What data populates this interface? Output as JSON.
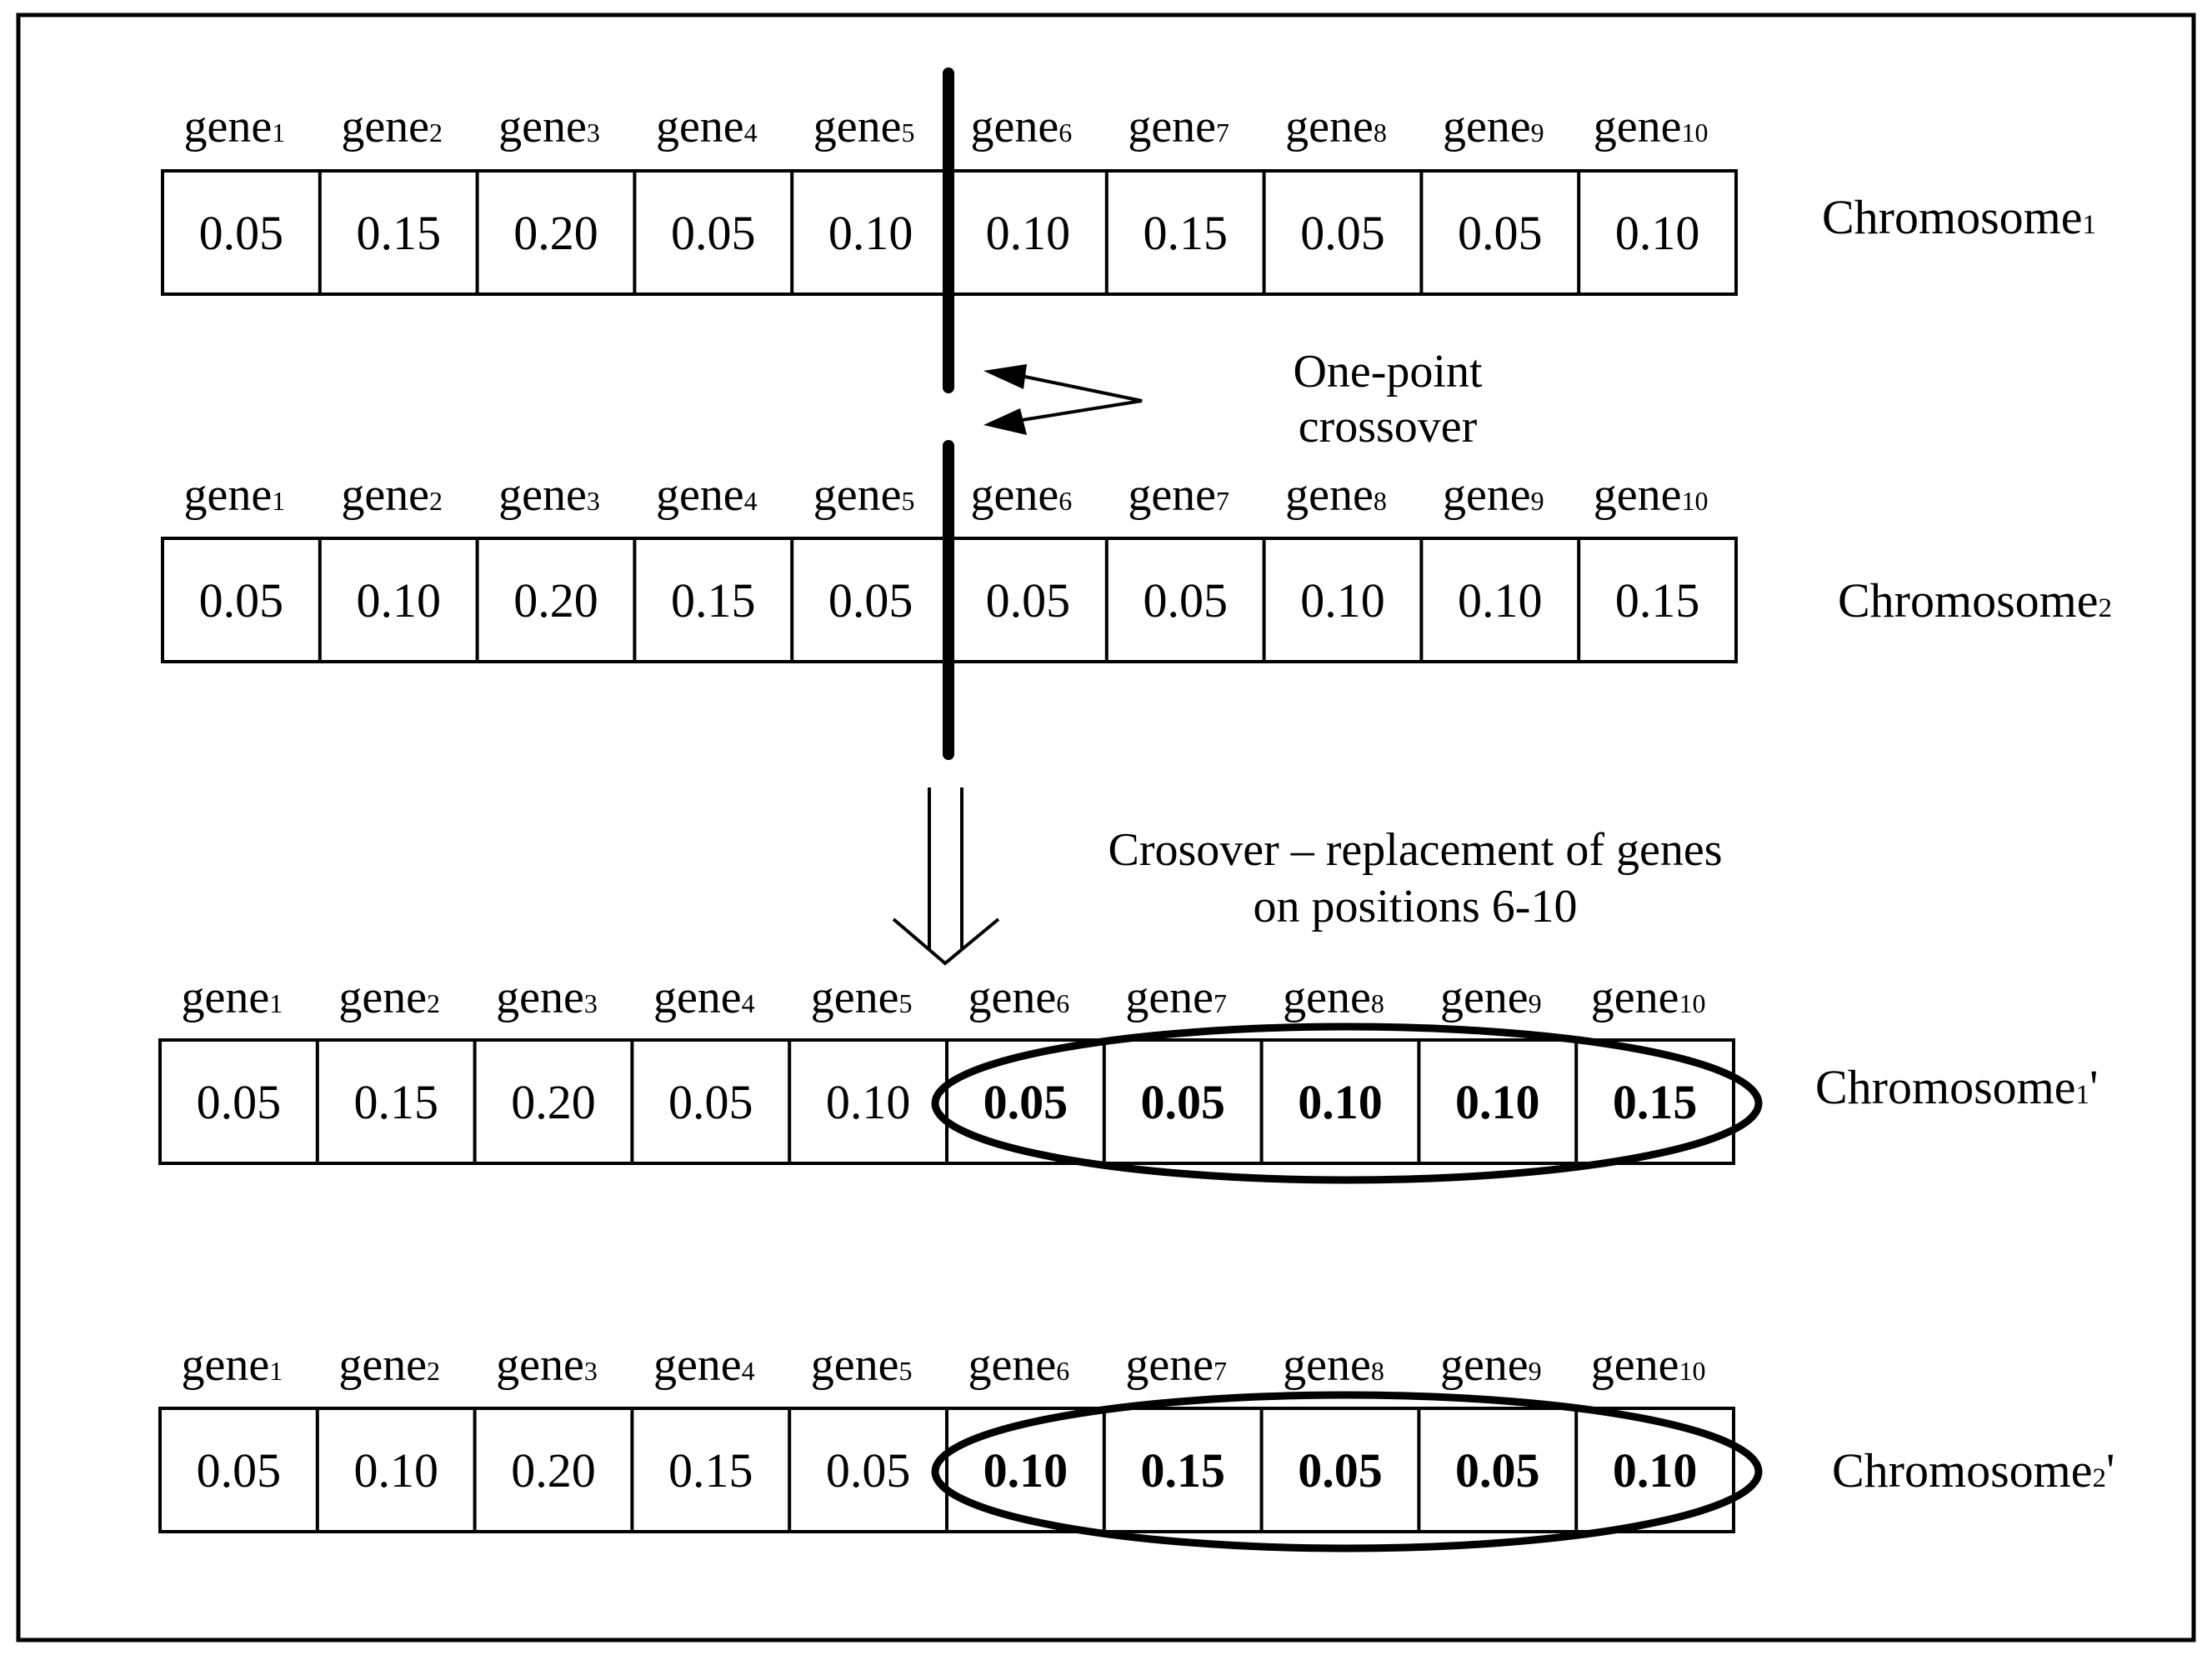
{
  "gene_labels": [
    "gene",
    "gene",
    "gene",
    "gene",
    "gene",
    "gene",
    "gene",
    "gene",
    "gene",
    "gene"
  ],
  "gene_subscripts": [
    "1",
    "2",
    "3",
    "4",
    "5",
    "6",
    "7",
    "8",
    "9",
    "10"
  ],
  "chromosomes": [
    {
      "name": "Chromosome",
      "sub": "1",
      "suffix": "",
      "values": [
        "0.05",
        "0.15",
        "0.20",
        "0.05",
        "0.10",
        "0.10",
        "0.15",
        "0.05",
        "0.05",
        "0.10"
      ],
      "bold_from": null
    },
    {
      "name": "Chromosome",
      "sub": "2",
      "suffix": "",
      "values": [
        "0.05",
        "0.10",
        "0.20",
        "0.15",
        "0.05",
        "0.05",
        "0.05",
        "0.10",
        "0.10",
        "0.15"
      ],
      "bold_from": null
    },
    {
      "name": "Chromosome",
      "sub": "1",
      "suffix": "'",
      "values": [
        "0.05",
        "0.15",
        "0.20",
        "0.05",
        "0.10",
        "0.05",
        "0.05",
        "0.10",
        "0.10",
        "0.15"
      ],
      "bold_from": 6
    },
    {
      "name": "Chromosome",
      "sub": "2",
      "suffix": "'",
      "values": [
        "0.05",
        "0.10",
        "0.20",
        "0.15",
        "0.05",
        "0.10",
        "0.15",
        "0.05",
        "0.05",
        "0.10"
      ],
      "bold_from": 6
    }
  ],
  "annotations": {
    "crossover_line1": "One-point",
    "crossover_line2": "crossover",
    "replacement_line1": "Crosover – replacement of genes",
    "replacement_line2": "on positions 6-10"
  }
}
